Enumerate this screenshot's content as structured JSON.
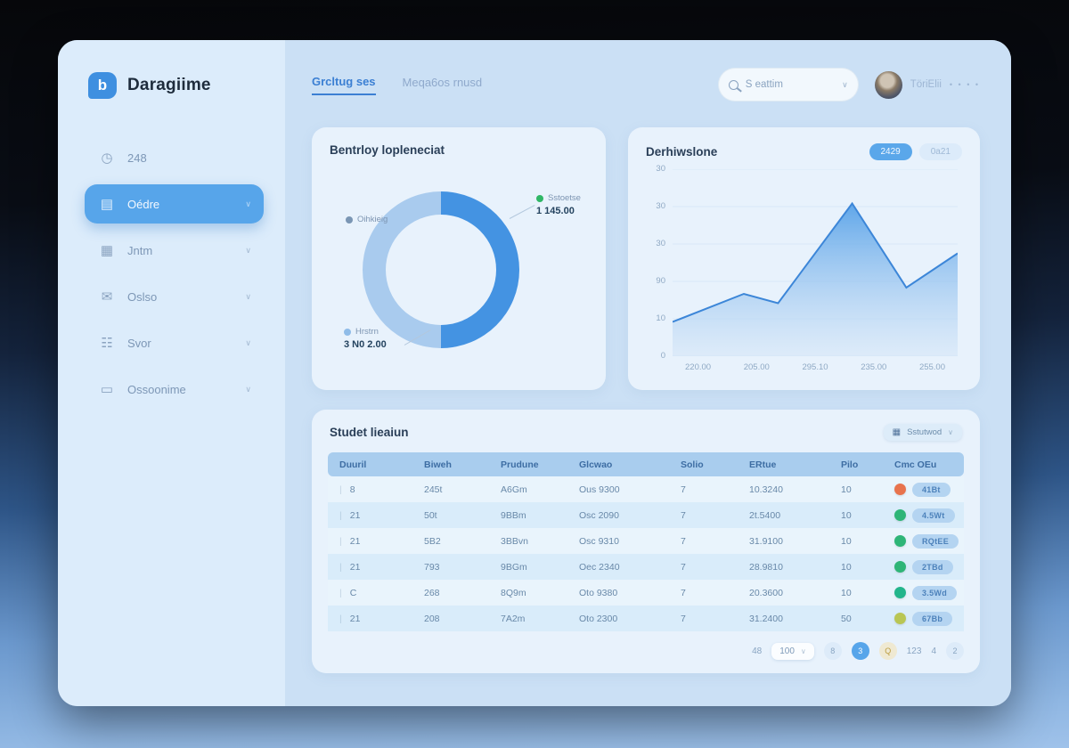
{
  "sidebar": {
    "logo": {
      "text": "Daragiime",
      "glyph": "b"
    },
    "items": [
      {
        "label": "248",
        "icon": "clock",
        "active": false,
        "chevron": false
      },
      {
        "label": "Oédre",
        "icon": "book",
        "active": true,
        "chevron": true
      },
      {
        "label": "Jntm",
        "icon": "calendar",
        "active": false,
        "chevron": true
      },
      {
        "label": "Oslso",
        "icon": "mail",
        "active": false,
        "chevron": true
      },
      {
        "label": "Svor",
        "icon": "basket",
        "active": false,
        "chevron": true
      },
      {
        "label": "Ossoonime",
        "icon": "card",
        "active": false,
        "chevron": true
      }
    ]
  },
  "header": {
    "tabs": [
      {
        "label": "Grcltug ses",
        "active": true
      },
      {
        "label": "Meqa6os rnusd",
        "active": false
      }
    ],
    "search": {
      "placeholder": "S eattim"
    },
    "user": {
      "name": "TöriElii",
      "menu_dots": "• • • •"
    }
  },
  "donut_card": {
    "title": "Bentrloy lopleneciat",
    "chart_data": {
      "type": "pie",
      "slices": [
        {
          "name": "Sstoetse",
          "value": 50,
          "color": "#4493e2"
        },
        {
          "name": "Hrstrn",
          "value": 50,
          "color": "#a9cbee"
        }
      ]
    },
    "legend_left": {
      "label": "Oihkieig",
      "color": "#7a96b4"
    },
    "legend_top_right": {
      "label": "Sstoetse",
      "value": "1 145.00",
      "color": "#2fb766"
    },
    "legend_bottom_left": {
      "label": "Hrstrn",
      "value": "3 N0 2.00",
      "color": "#8fbce8"
    }
  },
  "area_card": {
    "title": "Derhiwslone",
    "badges": [
      {
        "label": "2429",
        "style": "solid"
      },
      {
        "label": "0a21",
        "style": "ghost"
      }
    ],
    "chart_data": {
      "type": "area",
      "x_labels": [
        "220.00",
        "205.00",
        "295.10",
        "235.00",
        "255.00"
      ],
      "y_labels": [
        "30",
        "30",
        "30",
        "90",
        "10",
        "0"
      ],
      "y_max": 60,
      "points": [
        [
          0,
          11
        ],
        [
          0.25,
          20
        ],
        [
          0.37,
          17
        ],
        [
          0.63,
          49
        ],
        [
          0.82,
          22
        ],
        [
          1,
          33
        ]
      ],
      "line_color": "#3c86d8",
      "fill_top": "#58a2e8",
      "fill_bottom": "#cfe2f6"
    }
  },
  "table_card": {
    "title": "Studet lieaiun",
    "action_button": {
      "label": "Sstutwod"
    },
    "columns": [
      "Duuril",
      "Biweh",
      "Prudune",
      "Glcwao",
      "Solio",
      "ERtue",
      "Pilo",
      "Cmc OEu"
    ],
    "rows": [
      {
        "cells": [
          "8",
          "245t",
          "A6Gm",
          "Ous 9300",
          "7",
          "10.3240",
          "10"
        ],
        "status_color": "#e8734d",
        "action": "41Bt"
      },
      {
        "cells": [
          "21",
          "50t",
          "9BBm",
          "Osc 2090",
          "7",
          "2t.5400",
          "10"
        ],
        "status_color": "#2eb577",
        "action": "4.5Wt"
      },
      {
        "cells": [
          "21",
          "5B2",
          "3BBvn",
          "Osc 9310",
          "7",
          "31.9100",
          "10"
        ],
        "status_color": "#2eb577",
        "action": "RQtEE"
      },
      {
        "cells": [
          "21",
          "793",
          "9BGm",
          "Oec 2340",
          "7",
          "28.9810",
          "10"
        ],
        "status_color": "#2eb577",
        "action": "2TBd"
      },
      {
        "cells": [
          "C",
          "268",
          "8Q9m",
          "Oto 9380",
          "7",
          "20.3600",
          "10"
        ],
        "status_color": "#23b58b",
        "action": "3.5Wd"
      },
      {
        "cells": [
          "21",
          "208",
          "7A2m",
          "Oto 2300",
          "7",
          "31.2400",
          "50"
        ],
        "status_color": "#b9c654",
        "action": "67Bb"
      }
    ],
    "pagination": {
      "items": [
        {
          "label": "48",
          "type": "text"
        },
        {
          "label": "100",
          "type": "select"
        },
        {
          "label": "8",
          "type": "circle"
        },
        {
          "label": "3",
          "type": "circle-active"
        },
        {
          "label": "Q",
          "type": "circle-amber"
        },
        {
          "label": "123",
          "type": "text"
        },
        {
          "label": "4",
          "type": "text"
        },
        {
          "label": "2",
          "type": "circle"
        }
      ]
    }
  }
}
